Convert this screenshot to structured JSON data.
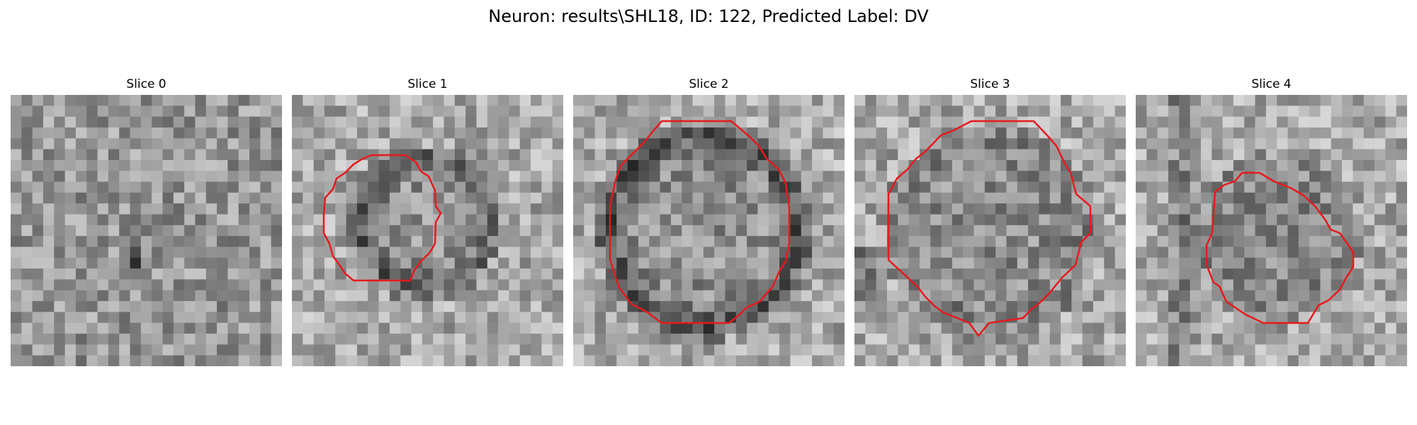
{
  "figure": {
    "title": "Neuron: results\\SHL18, ID: 122, Predicted Label: DV"
  },
  "panels": [
    {
      "title": "Slice 0"
    },
    {
      "title": "Slice 1"
    },
    {
      "title": "Slice 2"
    },
    {
      "title": "Slice 3"
    },
    {
      "title": "Slice 4"
    }
  ],
  "colors": {
    "contour": "#e8191c",
    "background": "#ffffff"
  }
}
